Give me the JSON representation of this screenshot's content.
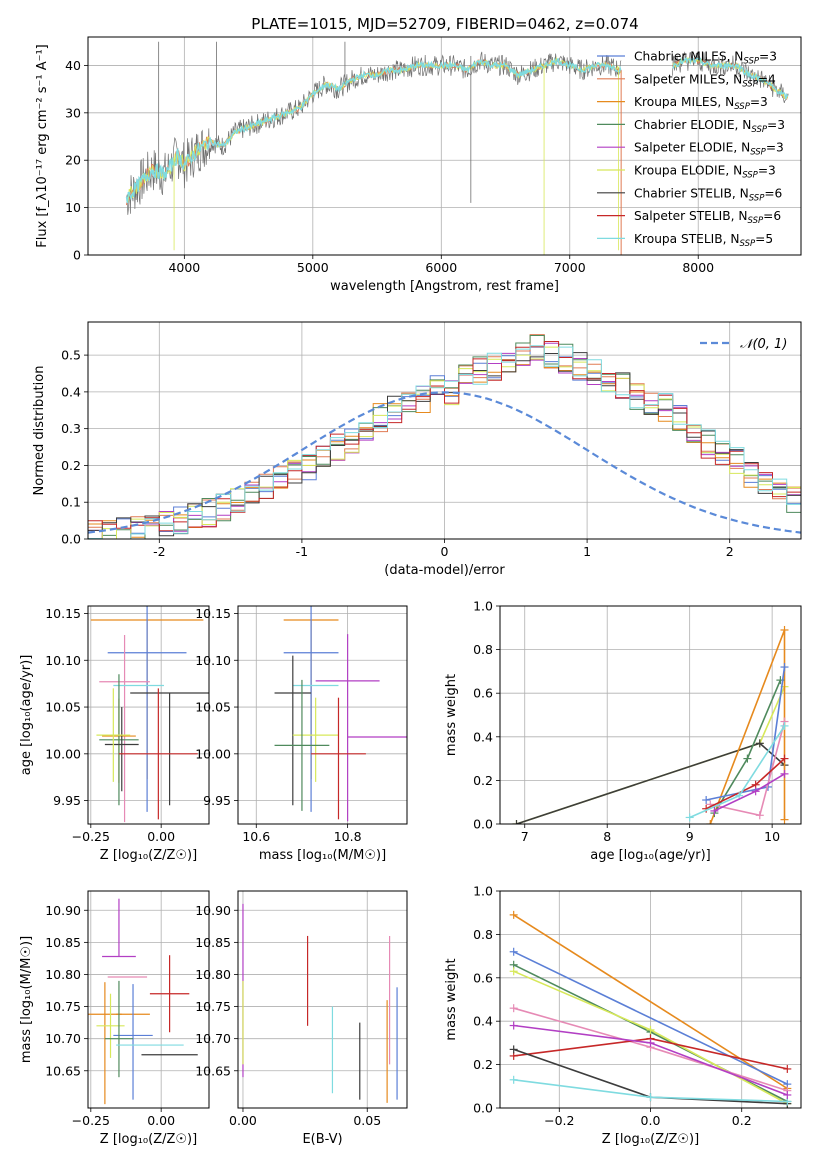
{
  "figure": {
    "title": "PLATE=1015, MJD=52709, FIBERID=0462, z=0.074"
  },
  "colors": {
    "Chabrier MILES": "#5b7fd6",
    "Salpeter MILES": "#e07b54",
    "Kroupa MILES": "#e68a1e",
    "Chabrier ELODIE": "#4f8a5d",
    "Salpeter ELODIE": "#b23fc4",
    "Kroupa ELODIE": "#d7e85a",
    "Chabrier STELIB": "#3d3d3d",
    "Salpeter STELIB": "#c62828",
    "Kroupa STELIB": "#7fdbe0",
    "pink": "#e68ab5",
    "data": "#707070",
    "normal": "#5b8ad8"
  },
  "chart_data": [
    {
      "id": "spectrum",
      "type": "line",
      "xlabel": "wavelength [Angstrom, rest frame]",
      "ylabel": "Flux [f_λ10⁻¹⁷ erg cm⁻² s⁻¹ A⁻¹]",
      "xlim": [
        3250,
        8800
      ],
      "ylim": [
        0,
        46
      ],
      "xticks": [
        4000,
        5000,
        6000,
        7000,
        8000
      ],
      "yticks": [
        0,
        10,
        20,
        30,
        40
      ],
      "legend_position": "top-right",
      "legend": [
        {
          "model": "Chabrier MILES",
          "nssp": "3"
        },
        {
          "model": "Salpeter MILES",
          "nssp": "4"
        },
        {
          "model": "Kroupa MILES",
          "nssp": "3"
        },
        {
          "model": "Chabrier ELODIE",
          "nssp": "3"
        },
        {
          "model": "Salpeter ELODIE",
          "nssp": "3"
        },
        {
          "model": "Kroupa ELODIE",
          "nssp": "3"
        },
        {
          "model": "Chabrier STELIB",
          "nssp": "6"
        },
        {
          "model": "Salpeter STELIB",
          "nssp": "6"
        },
        {
          "model": "Kroupa STELIB",
          "nssp": "5"
        }
      ],
      "continuum": [
        [
          3550,
          12
        ],
        [
          3650,
          15
        ],
        [
          3750,
          18
        ],
        [
          3850,
          17
        ],
        [
          3950,
          21
        ],
        [
          4000,
          19
        ],
        [
          4100,
          22
        ],
        [
          4200,
          24
        ],
        [
          4300,
          23
        ],
        [
          4400,
          26
        ],
        [
          4500,
          27
        ],
        [
          4600,
          28
        ],
        [
          4700,
          29
        ],
        [
          4800,
          30
        ],
        [
          4900,
          31
        ],
        [
          5000,
          34
        ],
        [
          5100,
          36
        ],
        [
          5200,
          35
        ],
        [
          5300,
          37
        ],
        [
          5400,
          38
        ],
        [
          5500,
          38
        ],
        [
          5600,
          39
        ],
        [
          5700,
          39
        ],
        [
          5800,
          40
        ],
        [
          5900,
          40
        ],
        [
          6000,
          40
        ],
        [
          6100,
          40
        ],
        [
          6200,
          39
        ],
        [
          6300,
          41
        ],
        [
          6400,
          40
        ],
        [
          6500,
          40
        ],
        [
          6600,
          38
        ],
        [
          6700,
          39
        ],
        [
          6800,
          40
        ],
        [
          6900,
          41
        ],
        [
          7000,
          40
        ],
        [
          7100,
          39
        ],
        [
          7200,
          40
        ],
        [
          7300,
          40
        ],
        [
          7400,
          39
        ]
      ],
      "continuum2": [
        [
          7800,
          40
        ],
        [
          7900,
          41
        ],
        [
          8000,
          41
        ],
        [
          8100,
          40
        ],
        [
          8200,
          40
        ],
        [
          8300,
          40
        ],
        [
          8400,
          38
        ],
        [
          8500,
          37
        ],
        [
          8600,
          35
        ],
        [
          8700,
          33
        ]
      ],
      "spikes": [
        [
          3800,
          45
        ],
        [
          4250,
          45
        ],
        [
          5250,
          45
        ],
        [
          6230,
          11
        ],
        [
          6230,
          42
        ],
        [
          7380,
          1
        ],
        [
          3920,
          1
        ],
        [
          6800,
          0
        ]
      ]
    },
    {
      "id": "residuals",
      "type": "histogram",
      "xlabel": "(data-model)/error",
      "ylabel": "Normed distribution",
      "xlim": [
        -2.5,
        2.5
      ],
      "ylim": [
        0,
        0.59
      ],
      "xticks": [
        -2,
        -1,
        0,
        1,
        2
      ],
      "yticks": [
        0.0,
        0.1,
        0.2,
        0.3,
        0.4,
        0.5
      ],
      "bin_width": 0.1,
      "bin_start": -2.5,
      "base_heights": [
        0.01,
        0.015,
        0.02,
        0.025,
        0.03,
        0.04,
        0.05,
        0.06,
        0.07,
        0.085,
        0.1,
        0.12,
        0.14,
        0.16,
        0.19,
        0.2,
        0.22,
        0.25,
        0.27,
        0.3,
        0.33,
        0.35,
        0.36,
        0.38,
        0.42,
        0.4,
        0.44,
        0.46,
        0.47,
        0.48,
        0.5,
        0.52,
        0.5,
        0.49,
        0.47,
        0.46,
        0.44,
        0.42,
        0.39,
        0.37,
        0.36,
        0.33,
        0.3,
        0.26,
        0.24,
        0.21,
        0.18,
        0.16,
        0.13,
        0.11
      ],
      "normal_label": "𝒩(0, 1)"
    },
    {
      "id": "age-vs-Z",
      "type": "scatter",
      "xlabel": "Z [log₁₀(Z/Z☉)]",
      "ylabel": "age  [log₁₀(age/yr)]",
      "xlim": [
        -0.26,
        0.17
      ],
      "ylim": [
        9.925,
        10.158
      ],
      "xticks": [
        -0.25,
        0.0
      ],
      "xticklabels": [
        "−0.25",
        "0.00"
      ],
      "yticks": [
        9.95,
        10.0,
        10.05,
        10.1,
        10.15
      ],
      "points": [
        {
          "model": "Kroupa MILES",
          "x": -0.05,
          "y": 10.143,
          "xerr": 0.2,
          "yerr": [
            0.17,
            0.0
          ]
        },
        {
          "model": "Chabrier MILES",
          "x": -0.05,
          "y": 10.108,
          "xerr": 0.14,
          "yerr": [
            0.17,
            0.05
          ]
        },
        {
          "model": "pink",
          "x": -0.13,
          "y": 10.077,
          "xerr": 0.09,
          "yerr": [
            0.15,
            0.05
          ]
        },
        {
          "model": "Kroupa STELIB",
          "x": -0.08,
          "y": 10.073,
          "xerr": 0.09,
          "yerr": [
            0.0,
            0.0
          ]
        },
        {
          "model": "Chabrier STELIB",
          "x": 0.03,
          "y": 10.065,
          "xerr": 0.14,
          "yerr": [
            0.12,
            0.0
          ]
        },
        {
          "model": "Kroupa MILES",
          "x": -0.15,
          "y": 10.019,
          "xerr": 0.06,
          "yerr": [
            0.05,
            0.04
          ]
        },
        {
          "model": "Chabrier ELODIE",
          "x": -0.15,
          "y": 10.015,
          "xerr": 0.07,
          "yerr": [
            0.07,
            0.07
          ]
        },
        {
          "model": "Chabrier STELIB",
          "x": -0.14,
          "y": 10.01,
          "xerr": 0.06,
          "yerr": [
            0.05,
            0.04
          ]
        },
        {
          "model": "Salpeter STELIB",
          "x": -0.01,
          "y": 10.0,
          "xerr": 0.14,
          "yerr": [
            0.07,
            0.07
          ]
        },
        {
          "model": "Kroupa ELODIE",
          "x": -0.17,
          "y": 10.02,
          "xerr": 0.06,
          "yerr": [
            0.05,
            0.05
          ]
        }
      ]
    },
    {
      "id": "age-vs-mass",
      "type": "scatter",
      "xlabel": "mass [log₁₀(M/M☉)]",
      "ylabel": "",
      "xlim": [
        10.56,
        10.93
      ],
      "ylim": [
        9.925,
        10.158
      ],
      "xticks": [
        10.6,
        10.8
      ],
      "yticks": [
        9.95,
        10.0,
        10.05,
        10.1,
        10.15
      ],
      "points": [
        {
          "model": "Kroupa MILES",
          "x": 10.72,
          "y": 10.143,
          "xerr": 0.06,
          "yerr": [
            0.17,
            0.0
          ]
        },
        {
          "model": "Chabrier MILES",
          "x": 10.72,
          "y": 10.108,
          "xerr": 0.06,
          "yerr": [
            0.17,
            0.05
          ]
        },
        {
          "model": "Salpeter ELODIE",
          "x": 10.8,
          "y": 10.078,
          "xerr": 0.07,
          "yerr": [
            0.15,
            0.05
          ]
        },
        {
          "model": "Kroupa STELIB",
          "x": 10.73,
          "y": 10.073,
          "xerr": 0.05,
          "yerr": [
            0.0,
            0.0
          ]
        },
        {
          "model": "Chabrier STELIB",
          "x": 10.68,
          "y": 10.065,
          "xerr": 0.04,
          "yerr": [
            0.12,
            0.04
          ]
        },
        {
          "model": "Kroupa ELODIE",
          "x": 10.73,
          "y": 10.02,
          "xerr": 0.05,
          "yerr": [
            0.05,
            0.04
          ]
        },
        {
          "model": "Chabrier ELODIE",
          "x": 10.7,
          "y": 10.009,
          "xerr": 0.06,
          "yerr": [
            0.07,
            0.07
          ]
        },
        {
          "model": "Salpeter STELIB",
          "x": 10.78,
          "y": 10.0,
          "xerr": 0.06,
          "yerr": [
            0.07,
            0.06
          ]
        },
        {
          "model": "Salpeter ELODIE",
          "x": 10.87,
          "y": 10.018,
          "xerr": 0.07,
          "yerr": [
            0.0,
            0.0
          ]
        }
      ]
    },
    {
      "id": "massweight-vs-age",
      "type": "line",
      "xlabel": "age  [log₁₀(age/yr)]",
      "ylabel": "mass weight",
      "xlim": [
        6.7,
        10.35
      ],
      "ylim": [
        0,
        1.0
      ],
      "xticks": [
        7,
        8,
        9,
        10
      ],
      "yticks": [
        0.0,
        0.2,
        0.4,
        0.6,
        0.8,
        1.0
      ],
      "series": [
        {
          "model": "Kroupa ELODIE",
          "x": [
            6.9,
            9.85,
            10.15
          ],
          "y": [
            0.0,
            0.37,
            0.63
          ]
        },
        {
          "model": "Chabrier STELIB",
          "x": [
            6.9,
            9.85,
            10.15
          ],
          "y": [
            0.0,
            0.37,
            0.27
          ]
        },
        {
          "model": "Kroupa MILES",
          "x": [
            9.25,
            10.15,
            10.15
          ],
          "y": [
            0.0,
            0.89,
            0.02
          ]
        },
        {
          "model": "Chabrier ELODIE",
          "x": [
            9.3,
            9.7,
            10.1
          ],
          "y": [
            0.05,
            0.3,
            0.66
          ]
        },
        {
          "model": "Chabrier MILES",
          "x": [
            9.2,
            9.95,
            10.15
          ],
          "y": [
            0.11,
            0.17,
            0.72
          ]
        },
        {
          "model": "pink",
          "x": [
            9.25,
            9.85,
            10.15
          ],
          "y": [
            0.09,
            0.04,
            0.47
          ]
        },
        {
          "model": "Salpeter STELIB",
          "x": [
            9.2,
            9.8,
            10.15
          ],
          "y": [
            0.07,
            0.18,
            0.3
          ]
        },
        {
          "model": "Kroupa STELIB",
          "x": [
            9.0,
            9.6,
            10.15
          ],
          "y": [
            0.03,
            0.13,
            0.45
          ]
        },
        {
          "model": "Salpeter ELODIE",
          "x": [
            9.3,
            9.8,
            10.15
          ],
          "y": [
            0.06,
            0.15,
            0.23
          ]
        }
      ]
    },
    {
      "id": "mass-vs-Z",
      "type": "scatter",
      "xlabel": "Z [log₁₀(Z/Z☉)]",
      "ylabel": "mass [log₁₀(M/M☉)]",
      "xlim": [
        -0.26,
        0.17
      ],
      "ylim": [
        10.592,
        10.93
      ],
      "xticks": [
        -0.25,
        0.0
      ],
      "xticklabels": [
        "−0.25",
        "0.00"
      ],
      "yticks": [
        10.65,
        10.7,
        10.75,
        10.8,
        10.85,
        10.9
      ],
      "points": [
        {
          "model": "Salpeter ELODIE",
          "x": -0.15,
          "y": 10.828,
          "xerr": 0.06,
          "yerr": [
            0.0,
            0.09
          ]
        },
        {
          "model": "pink",
          "x": -0.12,
          "y": 10.796,
          "xerr": 0.07,
          "yerr": [
            0.0,
            0.0
          ]
        },
        {
          "model": "Salpeter STELIB",
          "x": 0.03,
          "y": 10.77,
          "xerr": 0.07,
          "yerr": [
            0.06,
            0.06
          ]
        },
        {
          "model": "Kroupa MILES",
          "x": -0.2,
          "y": 10.738,
          "xerr": 0.06,
          "yerr": [
            0.14,
            0.05
          ]
        },
        {
          "model": "Kroupa MILES",
          "x": -0.1,
          "y": 10.738,
          "xerr": 0.06,
          "yerr": [
            0.0,
            0.0
          ]
        },
        {
          "model": "Kroupa ELODIE",
          "x": -0.18,
          "y": 10.72,
          "xerr": 0.05,
          "yerr": [
            0.05,
            0.05
          ]
        },
        {
          "model": "Chabrier MILES",
          "x": -0.1,
          "y": 10.705,
          "xerr": 0.07,
          "yerr": [
            0.1,
            0.08
          ]
        },
        {
          "model": "Chabrier ELODIE",
          "x": -0.15,
          "y": 10.7,
          "xerr": 0.05,
          "yerr": [
            0.06,
            0.09
          ]
        },
        {
          "model": "Kroupa STELIB",
          "x": -0.04,
          "y": 10.69,
          "xerr": 0.12,
          "yerr": [
            0.0,
            0.0
          ]
        },
        {
          "model": "Chabrier STELIB",
          "x": 0.03,
          "y": 10.675,
          "xerr": 0.1,
          "yerr": [
            0.0,
            0.0
          ]
        }
      ]
    },
    {
      "id": "Z-vs-EBV",
      "type": "scatter",
      "xlabel": "E(B-V)",
      "ylabel": "",
      "xlim": [
        -0.002,
        0.066
      ],
      "ylim": [
        10.592,
        10.93
      ],
      "xticks": [
        0.0,
        0.05
      ],
      "xticklabels": [
        "0.00",
        "0.05"
      ],
      "yticks": [
        10.65,
        10.7,
        10.75,
        10.8,
        10.85,
        10.9
      ],
      "points": [
        {
          "model": "Salpeter ELODIE",
          "x": 0.0,
          "y": 10.84,
          "xerr": 0,
          "yerr": [
            0.2,
            0.07
          ]
        },
        {
          "model": "Kroupa ELODIE",
          "x": 0.0,
          "y": 10.72,
          "xerr": 0,
          "yerr": [
            0.06,
            0.07
          ]
        },
        {
          "model": "Salpeter STELIB",
          "x": 0.026,
          "y": 10.79,
          "xerr": 0,
          "yerr": [
            0.07,
            0.07
          ]
        },
        {
          "model": "Kroupa STELIB",
          "x": 0.036,
          "y": 10.68,
          "xerr": 0,
          "yerr": [
            0.065,
            0.07
          ]
        },
        {
          "model": "Chabrier STELIB",
          "x": 0.047,
          "y": 10.665,
          "xerr": 0,
          "yerr": [
            0.06,
            0.06
          ]
        },
        {
          "model": "Kroupa MILES",
          "x": 0.058,
          "y": 10.68,
          "xerr": 0,
          "yerr": [
            0.08,
            0.08
          ]
        },
        {
          "model": "pink",
          "x": 0.059,
          "y": 10.76,
          "xerr": 0,
          "yerr": [
            0.1,
            0.1
          ]
        },
        {
          "model": "Chabrier MILES",
          "x": 0.062,
          "y": 10.69,
          "xerr": 0,
          "yerr": [
            0.085,
            0.09
          ]
        }
      ]
    },
    {
      "id": "massweight-vs-Z",
      "type": "line",
      "xlabel": "Z [log₁₀(Z/Z☉)]",
      "ylabel": "mass weight",
      "xlim": [
        -0.33,
        0.33
      ],
      "ylim": [
        0,
        1.0
      ],
      "xticks": [
        -0.2,
        0.0,
        0.2
      ],
      "xticklabels": [
        "−0.2",
        "0.0",
        "0.2"
      ],
      "yticks": [
        0.0,
        0.2,
        0.4,
        0.6,
        0.8,
        1.0
      ],
      "series": [
        {
          "model": "Kroupa MILES",
          "x": [
            -0.3,
            0.3
          ],
          "y": [
            0.89,
            0.09
          ]
        },
        {
          "model": "Chabrier MILES",
          "x": [
            -0.3,
            0.3
          ],
          "y": [
            0.72,
            0.11
          ]
        },
        {
          "model": "Chabrier ELODIE",
          "x": [
            -0.3,
            0.0,
            0.3
          ],
          "y": [
            0.66,
            0.35,
            0.03
          ]
        },
        {
          "model": "Kroupa ELODIE",
          "x": [
            -0.3,
            0.0,
            0.3
          ],
          "y": [
            0.63,
            0.36,
            0.02
          ]
        },
        {
          "model": "pink",
          "x": [
            -0.3,
            0.0,
            0.3
          ],
          "y": [
            0.46,
            0.28,
            0.08
          ]
        },
        {
          "model": "Salpeter STELIB",
          "x": [
            -0.3,
            0.0,
            0.3
          ],
          "y": [
            0.24,
            0.32,
            0.18
          ]
        },
        {
          "model": "Chabrier STELIB",
          "x": [
            -0.3,
            0.0,
            0.3
          ],
          "y": [
            0.27,
            0.05,
            0.02
          ]
        },
        {
          "model": "Kroupa STELIB",
          "x": [
            -0.3,
            0.0,
            0.3
          ],
          "y": [
            0.13,
            0.05,
            0.03
          ]
        },
        {
          "model": "Salpeter ELODIE",
          "x": [
            -0.3,
            0.0,
            0.3
          ],
          "y": [
            0.38,
            0.3,
            0.06
          ]
        }
      ]
    }
  ]
}
